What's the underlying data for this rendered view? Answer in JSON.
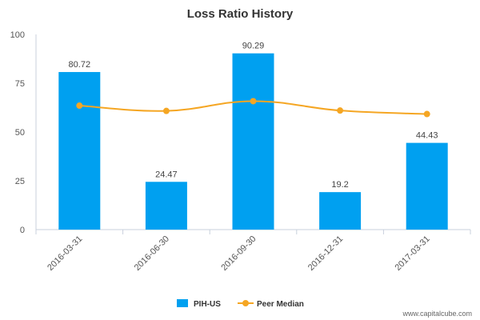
{
  "chart_data": {
    "type": "bar",
    "title": "Loss Ratio History",
    "xlabel": "",
    "ylabel": "",
    "ylim": [
      0,
      100
    ],
    "yticks": [
      0,
      25,
      50,
      75,
      100
    ],
    "categories": [
      "2016-03-31",
      "2016-06-30",
      "2016-09-30",
      "2016-12-31",
      "2017-03-31"
    ],
    "series": [
      {
        "name": "PIH-US",
        "kind": "bar",
        "color": "#00a0f0",
        "values": [
          80.72,
          24.47,
          90.29,
          19.2,
          44.43
        ],
        "labels": [
          "80.72",
          "24.47",
          "90.29",
          "19.2",
          "44.43"
        ]
      },
      {
        "name": "Peer Median",
        "kind": "line",
        "color": "#f5a623",
        "values": [
          63.5,
          60.8,
          65.8,
          61.0,
          59.2
        ]
      }
    ],
    "legend_position": "bottom-center",
    "grid": false
  },
  "watermark": "www.capitalcube.com"
}
